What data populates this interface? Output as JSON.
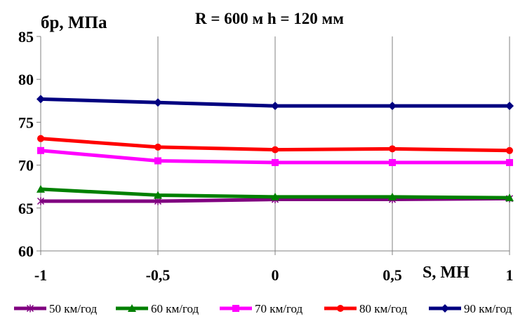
{
  "chart_data": {
    "type": "line",
    "title": "R = 600 м  h = 120 мм",
    "ylabel": "бр, МПа",
    "xlabel": "S, МН",
    "x": [
      -1,
      -0.5,
      0,
      0.5,
      1
    ],
    "x_tick_labels": [
      "-1",
      "-0,5",
      "0",
      "0,5",
      "1"
    ],
    "ylim": [
      60,
      85
    ],
    "y_ticks": [
      60,
      65,
      70,
      75,
      80,
      85
    ],
    "y_tick_labels": [
      "60",
      "65",
      "70",
      "75",
      "80",
      "85"
    ],
    "grid": "vertical",
    "legend_position": "bottom",
    "series": [
      {
        "name": "50 км/год",
        "values": [
          65.8,
          65.8,
          66.0,
          66.0,
          66.1
        ],
        "color": "#800080",
        "marker": "star"
      },
      {
        "name": "60 км/год",
        "values": [
          67.2,
          66.5,
          66.3,
          66.3,
          66.2
        ],
        "color": "#008000",
        "marker": "triangle"
      },
      {
        "name": "70 км/год",
        "values": [
          71.7,
          70.5,
          70.3,
          70.3,
          70.3
        ],
        "color": "#ff00ff",
        "marker": "square"
      },
      {
        "name": "80 км/год",
        "values": [
          73.1,
          72.1,
          71.8,
          71.9,
          71.7
        ],
        "color": "#ff0000",
        "marker": "circle"
      },
      {
        "name": "90 км/год",
        "values": [
          77.7,
          77.3,
          76.9,
          76.9,
          76.9
        ],
        "color": "#000080",
        "marker": "diamond"
      }
    ]
  }
}
